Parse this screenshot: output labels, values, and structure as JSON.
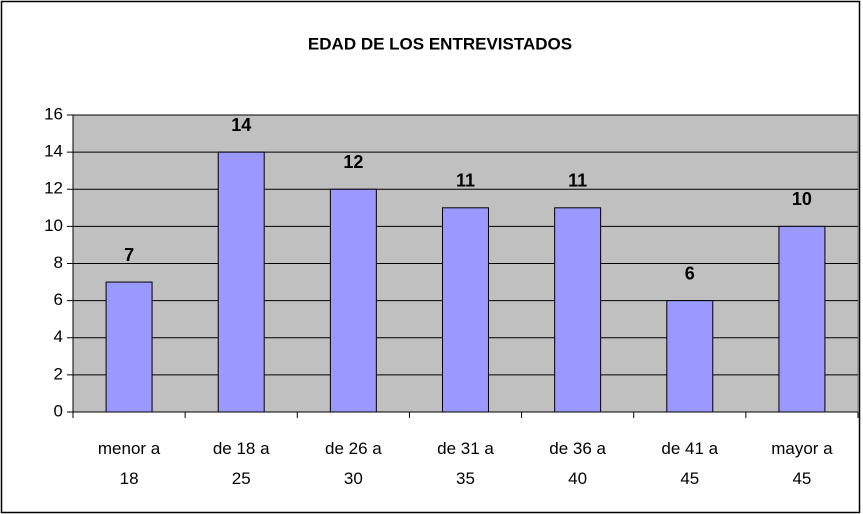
{
  "chart_data": {
    "type": "bar",
    "title": "EDAD DE LOS ENTREVISTADOS",
    "categories": [
      "menor a 18",
      "de 18 a 25",
      "de 26 a 30",
      "de 31 a 35",
      "de 36 a 40",
      "de 41 a 45",
      "mayor a 45"
    ],
    "values": [
      7,
      14,
      12,
      11,
      11,
      6,
      10
    ],
    "color": "#9999ff",
    "ylim": [
      0,
      16
    ],
    "yticks": [
      0,
      2,
      4,
      6,
      8,
      10,
      12,
      14,
      16
    ],
    "grid": true
  }
}
